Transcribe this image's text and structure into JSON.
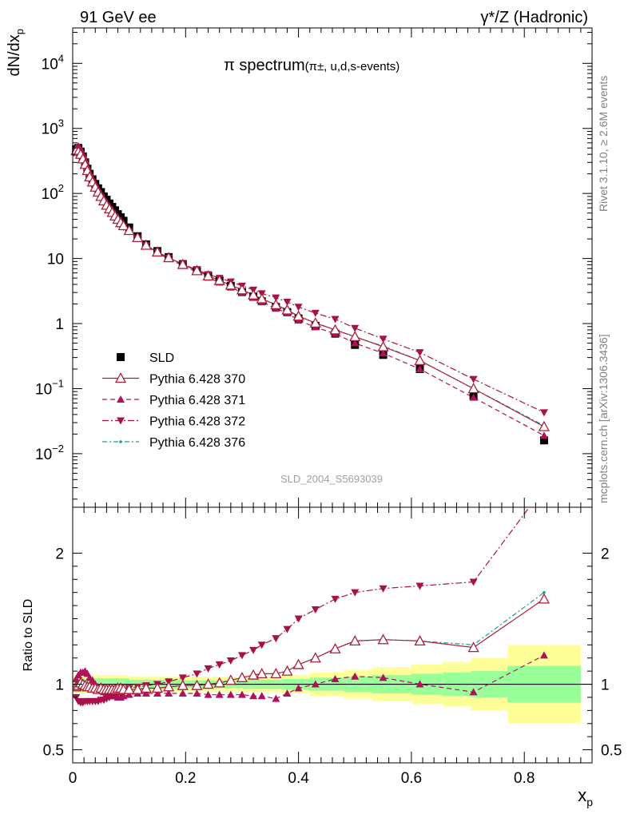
{
  "header": {
    "left": "91 GeV ee",
    "right": "γ*/Z (Hadronic)"
  },
  "side_labels": {
    "rivet": "Rivet 3.1.10, ≥ 2.6M events",
    "mcplots": "mcplots.cern.ch [arXiv:1306.3436]"
  },
  "analysis_id": "SLD_2004_S5693039",
  "colors": {
    "data": "#000000",
    "p370": "#aa1f3a",
    "p371": "#b0105c",
    "p372": "#a8104a",
    "p376": "#1a9a96",
    "band_yellow": "#ffff99",
    "band_green": "#99ff99"
  },
  "chart_data": [
    {
      "type": "scatter",
      "panel": "main",
      "title_main": "π spectrum",
      "title_sub": "(π±, u,d,s-events)",
      "ylabel": "dN/dx_p",
      "yscale": "log",
      "ylim": [
        0.0015,
        35000
      ],
      "xlim": [
        0,
        0.92
      ],
      "ytick_labels": [
        "10^-2",
        "10^-1",
        "1",
        "10",
        "10^2",
        "10^3",
        "10^4"
      ],
      "legend": {
        "position": "lower-left",
        "entries": [
          "SLD",
          "Pythia 6.428 370",
          "Pythia 6.428 371",
          "Pythia 6.428 372",
          "Pythia 6.428 376"
        ]
      },
      "x": [
        0.006,
        0.01,
        0.014,
        0.018,
        0.022,
        0.026,
        0.03,
        0.035,
        0.04,
        0.045,
        0.05,
        0.055,
        0.06,
        0.065,
        0.07,
        0.075,
        0.08,
        0.085,
        0.09,
        0.1,
        0.115,
        0.13,
        0.15,
        0.17,
        0.195,
        0.22,
        0.24,
        0.26,
        0.28,
        0.3,
        0.32,
        0.335,
        0.36,
        0.38,
        0.4,
        0.43,
        0.465,
        0.5,
        0.55,
        0.615,
        0.71,
        0.835
      ],
      "series": [
        {
          "name": "SLD",
          "marker": "square",
          "values": [
            480,
            500,
            440,
            370,
            300,
            240,
            200,
            165,
            140,
            120,
            105,
            90,
            80,
            70,
            62,
            55,
            48,
            43,
            38,
            30,
            22,
            16.5,
            13,
            10.5,
            8.2,
            6.6,
            5.4,
            4.6,
            3.8,
            3.05,
            2.6,
            2.2,
            1.8,
            1.5,
            1.2,
            0.92,
            0.7,
            0.47,
            0.33,
            0.2,
            0.078,
            0.016
          ]
        },
        {
          "name": "Pythia 6.428 370",
          "marker": "open-triangle-up",
          "line": "solid",
          "values": [
            455,
            440,
            400,
            340,
            280,
            225,
            180,
            150,
            125,
            105,
            90,
            77,
            66,
            58,
            51,
            45,
            40,
            35.5,
            32,
            27,
            21,
            16,
            12.6,
            10.3,
            8.1,
            6.5,
            5.4,
            4.6,
            3.9,
            3.3,
            2.75,
            2.4,
            1.95,
            1.62,
            1.3,
            1.02,
            0.8,
            0.63,
            0.44,
            0.27,
            0.1,
            0.026
          ]
        },
        {
          "name": "Pythia 6.428 371",
          "marker": "triangle-up",
          "line": "dashed",
          "values": [
            500,
            535,
            480,
            400,
            330,
            260,
            210,
            170,
            140,
            117,
            100,
            85,
            73,
            64,
            56,
            49,
            43,
            38,
            33,
            27.5,
            20.8,
            15.6,
            12.2,
            9.9,
            7.8,
            6.2,
            5.1,
            4.3,
            3.6,
            3.0,
            2.5,
            2.15,
            1.7,
            1.45,
            1.12,
            0.88,
            0.7,
            0.5,
            0.35,
            0.2,
            0.073,
            0.019
          ]
        },
        {
          "name": "Pythia 6.428 372",
          "marker": "triangle-down",
          "line": "dashdot",
          "values": [
            430,
            420,
            380,
            320,
            265,
            212,
            172,
            143,
            118,
            100,
            86,
            74,
            64,
            56,
            49,
            43.5,
            38.5,
            34,
            30.5,
            26,
            20.5,
            15.8,
            12.6,
            10.2,
            8.2,
            6.7,
            5.7,
            5.0,
            4.4,
            3.8,
            3.3,
            2.9,
            2.5,
            2.15,
            1.8,
            1.45,
            1.17,
            0.85,
            0.58,
            0.36,
            0.14,
            0.043
          ]
        },
        {
          "name": "Pythia 6.428 376",
          "marker": "dot",
          "line": "dashdot",
          "values": [
            455,
            440,
            400,
            340,
            280,
            225,
            180,
            150,
            125,
            105,
            90,
            77,
            66,
            58,
            51,
            45,
            40,
            35.5,
            32,
            27,
            21,
            16,
            12.6,
            10.3,
            8.1,
            6.5,
            5.4,
            4.6,
            3.9,
            3.3,
            2.75,
            2.4,
            1.95,
            1.62,
            1.3,
            1.02,
            0.8,
            0.62,
            0.45,
            0.27,
            0.1,
            0.027
          ]
        }
      ]
    },
    {
      "type": "line",
      "panel": "ratio",
      "ylabel": "Ratio to SLD",
      "xlabel": "x_p",
      "ylim": [
        0.4,
        2.35
      ],
      "xlim": [
        0,
        0.92
      ],
      "ytick_labels": [
        "0.5",
        "1",
        "2"
      ],
      "xtick_labels": [
        "0",
        "0.2",
        "0.4",
        "0.6",
        "0.8"
      ],
      "x": [
        0.006,
        0.01,
        0.014,
        0.018,
        0.022,
        0.026,
        0.03,
        0.035,
        0.04,
        0.045,
        0.05,
        0.055,
        0.06,
        0.065,
        0.07,
        0.075,
        0.08,
        0.085,
        0.09,
        0.1,
        0.115,
        0.13,
        0.15,
        0.17,
        0.195,
        0.22,
        0.24,
        0.26,
        0.28,
        0.3,
        0.32,
        0.335,
        0.36,
        0.38,
        0.4,
        0.43,
        0.465,
        0.5,
        0.55,
        0.615,
        0.71,
        0.835
      ],
      "bands": {
        "edges": [
          0.0,
          0.1,
          0.2,
          0.3,
          0.37,
          0.42,
          0.48,
          0.53,
          0.6,
          0.655,
          0.705,
          0.77,
          0.9
        ],
        "green": [
          0.045,
          0.035,
          0.03,
          0.035,
          0.04,
          0.05,
          0.06,
          0.07,
          0.08,
          0.09,
          0.1,
          0.14
        ],
        "yellow": [
          0.07,
          0.06,
          0.055,
          0.06,
          0.07,
          0.09,
          0.11,
          0.13,
          0.15,
          0.17,
          0.2,
          0.3
        ]
      },
      "series": [
        {
          "name": "Pythia 6.428 370",
          "values": [
            0.98,
            0.99,
            1.01,
            1.0,
            0.99,
            0.98,
            0.98,
            0.97,
            0.97,
            0.96,
            0.97,
            0.96,
            0.96,
            0.96,
            0.96,
            0.96,
            0.97,
            0.97,
            0.96,
            0.96,
            0.96,
            0.97,
            0.97,
            0.98,
            0.99,
            0.99,
            1.0,
            1.01,
            1.03,
            1.05,
            1.07,
            1.08,
            1.08,
            1.1,
            1.15,
            1.2,
            1.27,
            1.33,
            1.34,
            1.33,
            1.28,
            1.65
          ]
        },
        {
          "name": "Pythia 6.428 371",
          "values": [
            1.04,
            1.07,
            1.09,
            1.09,
            1.1,
            1.08,
            1.05,
            1.03,
            1.0,
            0.98,
            0.95,
            0.94,
            0.92,
            0.92,
            0.91,
            0.91,
            0.9,
            0.9,
            0.91,
            0.92,
            0.93,
            0.93,
            0.93,
            0.93,
            0.93,
            0.93,
            0.92,
            0.92,
            0.92,
            0.92,
            0.91,
            0.91,
            0.89,
            0.93,
            0.97,
            1.0,
            1.04,
            1.06,
            1.05,
            1.0,
            0.94,
            1.22
          ]
        },
        {
          "name": "Pythia 6.428 372",
          "values": [
            0.9,
            0.87,
            0.86,
            0.86,
            0.87,
            0.87,
            0.87,
            0.87,
            0.87,
            0.87,
            0.88,
            0.88,
            0.89,
            0.9,
            0.91,
            0.92,
            0.93,
            0.93,
            0.95,
            0.97,
            0.98,
            0.99,
            1.0,
            1.02,
            1.05,
            1.08,
            1.12,
            1.15,
            1.18,
            1.22,
            1.26,
            1.3,
            1.35,
            1.42,
            1.5,
            1.57,
            1.65,
            1.7,
            1.73,
            1.75,
            1.78,
            2.5
          ]
        },
        {
          "name": "Pythia 6.428 376",
          "values": [
            0.98,
            0.99,
            1.01,
            1.0,
            0.99,
            0.98,
            0.98,
            0.97,
            0.97,
            0.96,
            0.97,
            0.96,
            0.96,
            0.96,
            0.96,
            0.96,
            0.97,
            0.97,
            0.96,
            0.96,
            0.96,
            0.97,
            0.97,
            0.98,
            0.99,
            0.99,
            1.0,
            1.01,
            1.03,
            1.05,
            1.07,
            1.08,
            1.08,
            1.1,
            1.15,
            1.2,
            1.27,
            1.33,
            1.34,
            1.33,
            1.3,
            1.7
          ]
        }
      ]
    }
  ]
}
